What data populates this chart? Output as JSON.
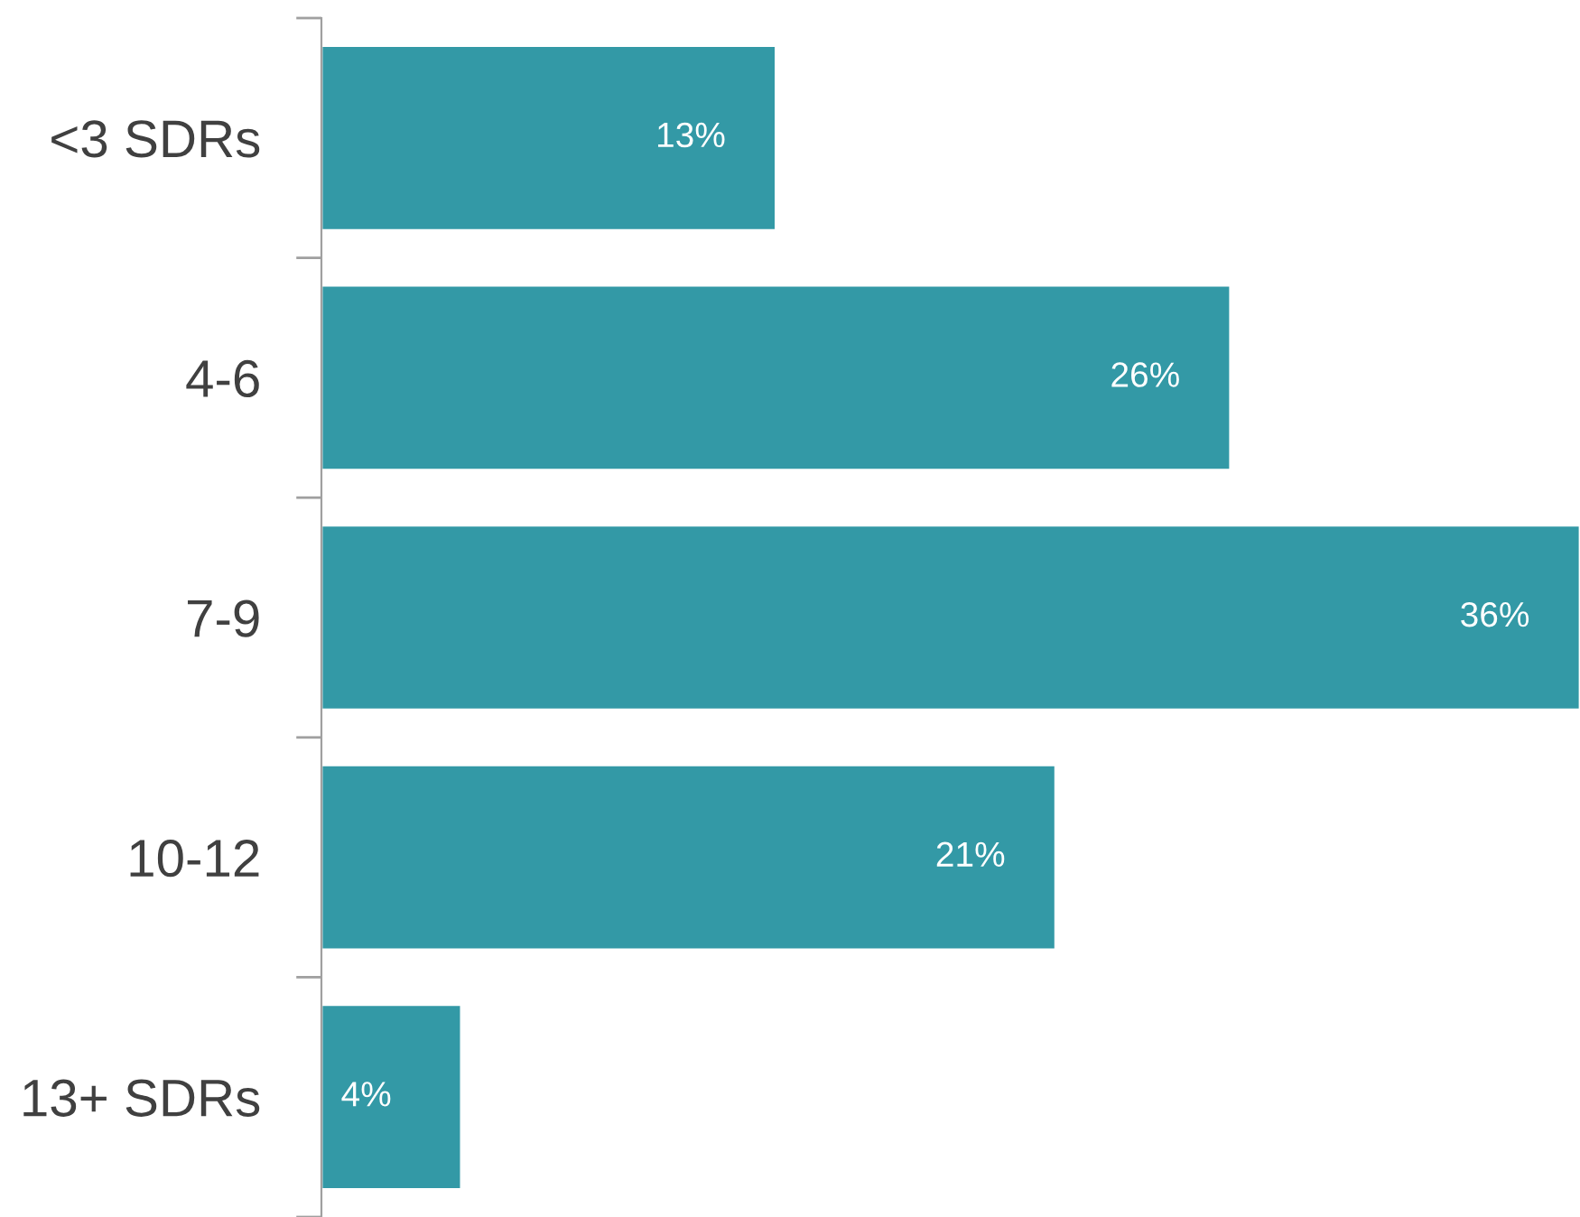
{
  "chart_data": {
    "type": "bar",
    "orientation": "horizontal",
    "categories": [
      "<3 SDRs",
      "4-6",
      "7-9",
      "10-12",
      "13+ SDRs"
    ],
    "values": [
      13,
      26,
      36,
      21,
      4
    ],
    "color": "#3399a6",
    "data_labels": true,
    "value_labels": [
      "13%",
      "26%",
      "36%",
      "21%",
      "4%"
    ],
    "xlim": [
      0,
      36
    ],
    "tick_labels": "y",
    "grid": false,
    "legend": false
  }
}
